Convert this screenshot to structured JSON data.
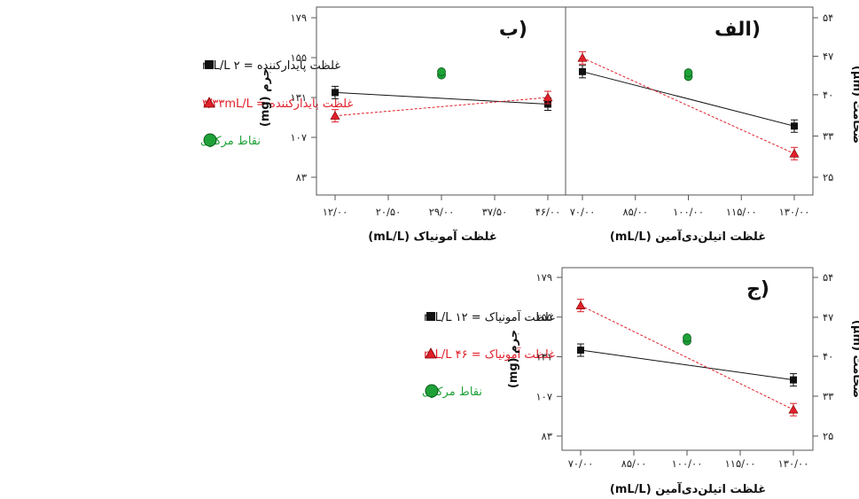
{
  "colors": {
    "black_series": "#111111",
    "red_series": "#e0202a",
    "center_points": "#1ea238",
    "frame": "#555555"
  },
  "legend_top": {
    "items": [
      {
        "label": "غلظت پایدارکننده = ۲ mL/L",
        "marker": "square",
        "color": "#111111"
      },
      {
        "label": "غلظت پایدارکننده = ۳/۳۳mL/L",
        "marker": "triangle",
        "color": "#e0202a"
      },
      {
        "label": "نقاط مرکزی",
        "marker": "circle",
        "color": "#1ea238"
      }
    ]
  },
  "legend_bottom": {
    "items": [
      {
        "label": "غلظت آمونیاک = ۱۲ mL/L",
        "marker": "square",
        "color": "#111111"
      },
      {
        "label": "غلظت آمونیاک = ۴۶ mL/L",
        "marker": "triangle",
        "color": "#e0202a"
      },
      {
        "label": "نقاط مرکزی",
        "marker": "circle",
        "color": "#1ea238"
      }
    ]
  },
  "chart_data": [
    {
      "id": "panel-b",
      "type": "line",
      "panel_label": "(ب",
      "xlabel": "غلظت آمونیاک (mL/L)",
      "ylabel": "جرم (mg)",
      "x_tick_labels": [
        "۱۲/۰۰",
        "۲۰/۵۰",
        "۲۹/۰۰",
        "۳۷/۵۰",
        "۴۶/۰۰"
      ],
      "x_ticks": [
        12,
        20.5,
        29,
        37.5,
        46
      ],
      "xlim": [
        12,
        46
      ],
      "y_tick_labels": [
        "۸۳",
        "۱۰۷",
        "۱۳۱",
        "۱۵۵",
        "۱۷۹"
      ],
      "y_ticks": [
        83,
        107,
        131,
        155,
        179
      ],
      "ylim": [
        83,
        179
      ],
      "series": [
        {
          "color": "black",
          "marker": "square",
          "x": [
            12,
            46
          ],
          "y": [
            134,
            127
          ]
        },
        {
          "color": "red",
          "marker": "triangle",
          "x": [
            12,
            46
          ],
          "y": [
            120,
            131
          ]
        },
        {
          "color": "green",
          "marker": "circle",
          "x": [
            29,
            29
          ],
          "y": [
            144.5,
            146.5
          ]
        }
      ]
    },
    {
      "id": "panel-alef",
      "type": "line",
      "panel_label": "(الف",
      "xlabel": "غلظت اتیلن‌دی‌آمین (mL/L)",
      "ylabel": "ضخامت (µm)",
      "x_tick_labels": [
        "۷۰/۰۰",
        "۸۵/۰۰",
        "۱۰۰/۰۰",
        "۱۱۵/۰۰",
        "۱۳۰/۰۰"
      ],
      "x_ticks": [
        70,
        85,
        100,
        115,
        130
      ],
      "xlim": [
        70,
        130
      ],
      "y_tick_labels": [
        "۲۵",
        "۳۳",
        "۴۰",
        "۴۷",
        "۵۴"
      ],
      "y_ticks": [
        25,
        32.5,
        40,
        47,
        54
      ],
      "ylim": [
        25,
        54
      ],
      "series": [
        {
          "color": "black",
          "marker": "square",
          "x": [
            70,
            130
          ],
          "y": [
            44.2,
            34.3
          ]
        },
        {
          "color": "red",
          "marker": "triangle",
          "x": [
            70,
            130
          ],
          "y": [
            46.7,
            29.3
          ]
        },
        {
          "color": "green",
          "marker": "circle",
          "x": [
            100,
            100
          ],
          "y": [
            43.3,
            44.0
          ]
        }
      ]
    },
    {
      "id": "panel-jim",
      "type": "line",
      "panel_label": "(ج",
      "xlabel": "غلظت اتیلن‌دی‌آمین (mL/L)",
      "ylabel_left": "جرم (mg)",
      "ylabel_right": "ضخامت (µm)",
      "x_tick_labels": [
        "۷۰/۰۰",
        "۸۵/۰۰",
        "۱۰۰/۰۰",
        "۱۱۵/۰۰",
        "۱۳۰/۰۰"
      ],
      "x_ticks": [
        70,
        85,
        100,
        115,
        130
      ],
      "xlim": [
        70,
        130
      ],
      "y_tick_labels_left": [
        "۸۳",
        "۱۰۷",
        "۱۳۱",
        "۱۵۵",
        "۱۷۹"
      ],
      "y_ticks_left": [
        83,
        107,
        131,
        155,
        179
      ],
      "y_tick_labels_right": [
        "۲۵",
        "۳۳",
        "۴۰",
        "۴۷",
        "۵۴"
      ],
      "ylim": [
        83,
        179
      ],
      "series": [
        {
          "color": "black",
          "marker": "square",
          "x": [
            70,
            130
          ],
          "y": [
            135,
            117
          ]
        },
        {
          "color": "red",
          "marker": "triangle",
          "x": [
            70,
            130
          ],
          "y": [
            162,
            99
          ]
        },
        {
          "color": "green",
          "marker": "circle",
          "x": [
            100,
            100
          ],
          "y": [
            140.5,
            142.5
          ]
        }
      ]
    }
  ]
}
